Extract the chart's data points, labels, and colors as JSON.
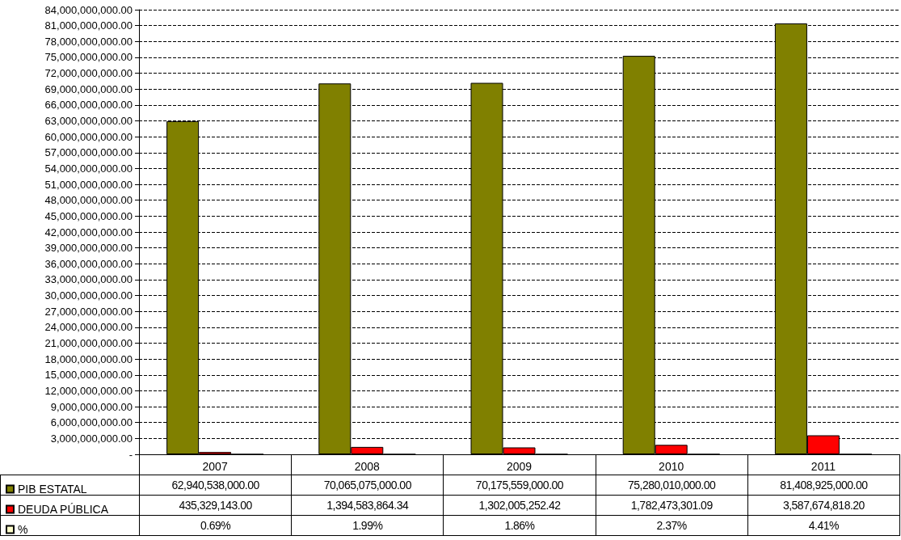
{
  "chart_data": {
    "type": "bar",
    "categories": [
      "2007",
      "2008",
      "2009",
      "2010",
      "2011"
    ],
    "series": [
      {
        "name": "PIB ESTATAL",
        "color": "#808000",
        "values": [
          62940538000,
          70065075000,
          70175559000,
          75280010000,
          81408925000
        ],
        "value_labels": [
          "62,940,538,000.00",
          "70,065,075,000.00",
          "70,175,559,000.00",
          "75,280,010,000.00",
          "81,408,925,000.00"
        ]
      },
      {
        "name": "DEUDA PÚBLICA",
        "color": "#ff0000",
        "values": [
          435329143,
          1394583864.34,
          1302005252.42,
          1782473301.09,
          3587674818.2
        ],
        "value_labels": [
          "435,329,143.00",
          "1,394,583,864.34",
          "1,302,005,252.42",
          "1,782,473,301.09",
          "3,587,674,818.20"
        ]
      },
      {
        "name": "%",
        "color": "#ffffcc",
        "values": [
          0.69,
          1.99,
          1.86,
          2.37,
          4.41
        ],
        "value_labels": [
          "0.69%",
          "1.99%",
          "1.86%",
          "2.37%",
          "4.41%"
        ]
      }
    ],
    "ylim": [
      0,
      84000000000
    ],
    "yticks": [
      {
        "value": 0,
        "label": "-"
      },
      {
        "value": 3000000000,
        "label": "3,000,000,000.00"
      },
      {
        "value": 6000000000,
        "label": "6,000,000,000.00"
      },
      {
        "value": 9000000000,
        "label": "9,000,000,000.00"
      },
      {
        "value": 12000000000,
        "label": "12,000,000,000.00"
      },
      {
        "value": 15000000000,
        "label": "15,000,000,000.00"
      },
      {
        "value": 18000000000,
        "label": "18,000,000,000.00"
      },
      {
        "value": 21000000000,
        "label": "21,000,000,000.00"
      },
      {
        "value": 24000000000,
        "label": "24,000,000,000.00"
      },
      {
        "value": 27000000000,
        "label": "27,000,000,000.00"
      },
      {
        "value": 30000000000,
        "label": "30,000,000,000.00"
      },
      {
        "value": 33000000000,
        "label": "33,000,000,000.00"
      },
      {
        "value": 36000000000,
        "label": "36,000,000,000.00"
      },
      {
        "value": 39000000000,
        "label": "39,000,000,000.00"
      },
      {
        "value": 42000000000,
        "label": "42,000,000,000.00"
      },
      {
        "value": 45000000000,
        "label": "45,000,000,000.00"
      },
      {
        "value": 48000000000,
        "label": "48,000,000,000.00"
      },
      {
        "value": 51000000000,
        "label": "51,000,000,000.00"
      },
      {
        "value": 54000000000,
        "label": "54,000,000,000.00"
      },
      {
        "value": 57000000000,
        "label": "57,000,000,000.00"
      },
      {
        "value": 60000000000,
        "label": "60,000,000,000.00"
      },
      {
        "value": 63000000000,
        "label": "63,000,000,000.00"
      },
      {
        "value": 66000000000,
        "label": "66,000,000,000.00"
      },
      {
        "value": 69000000000,
        "label": "69,000,000,000.00"
      },
      {
        "value": 72000000000,
        "label": "72,000,000,000.00"
      },
      {
        "value": 75000000000,
        "label": "75,000,000,000.00"
      },
      {
        "value": 78000000000,
        "label": "78,000,000,000.00"
      },
      {
        "value": 81000000000,
        "label": "81,000,000,000.00"
      },
      {
        "value": 84000000000,
        "label": "84,000,000,000.00"
      }
    ],
    "grid": "y",
    "legend": "bottom left"
  }
}
